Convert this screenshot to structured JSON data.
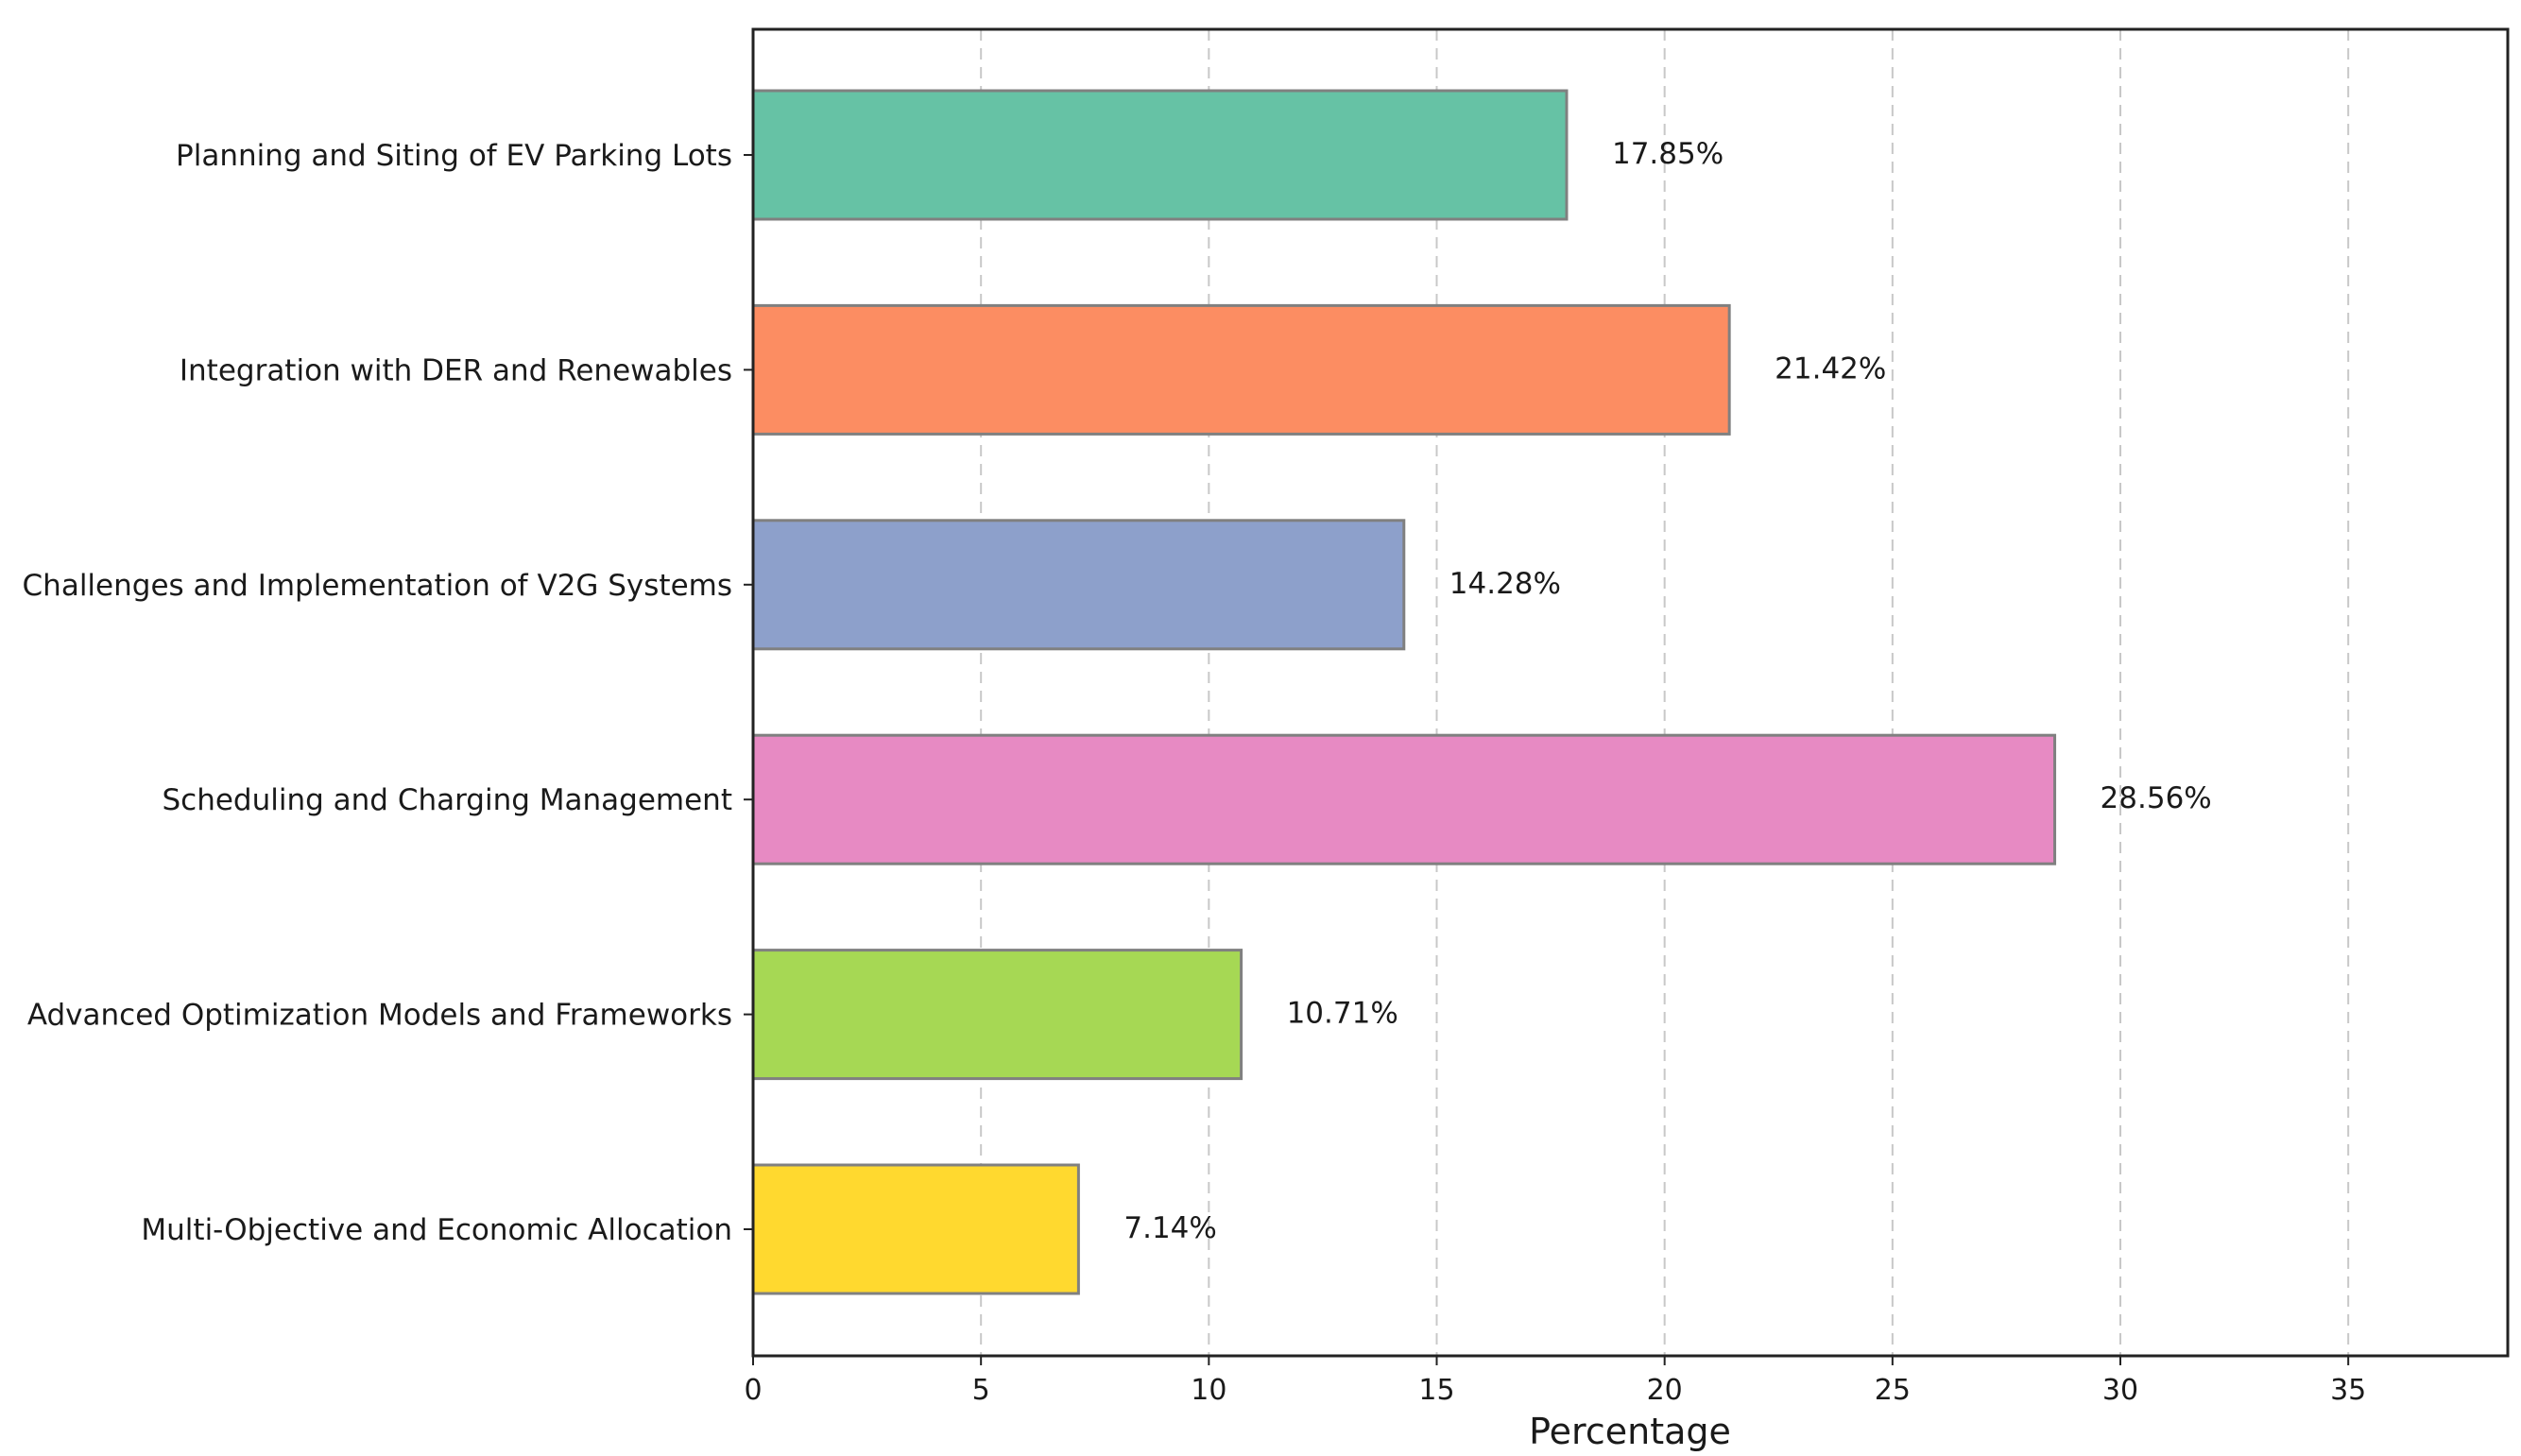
{
  "chart_data": {
    "type": "bar",
    "orientation": "horizontal",
    "title": "",
    "xlabel": "Percentage",
    "ylabel": "",
    "xlim": [
      0,
      38.5
    ],
    "xticks": [
      0,
      5,
      10,
      15,
      20,
      25,
      30,
      35
    ],
    "grid": "x-dashed",
    "categories": [
      "Planning and Siting of EV Parking Lots",
      "Integration with DER and Renewables",
      "Challenges and Implementation of V2G Systems",
      "Scheduling and Charging Management",
      "Advanced Optimization Models and Frameworks",
      "Multi-Objective and Economic Allocation"
    ],
    "values": [
      17.85,
      21.42,
      14.28,
      28.56,
      10.71,
      7.14
    ],
    "value_labels": [
      "17.85%",
      "21.42%",
      "14.28%",
      "28.56%",
      "10.71%",
      "7.14%"
    ],
    "colors": [
      "#66c2a5",
      "#fc8d62",
      "#8da0cb",
      "#e78ac3",
      "#a6d854",
      "#ffd92f"
    ]
  }
}
